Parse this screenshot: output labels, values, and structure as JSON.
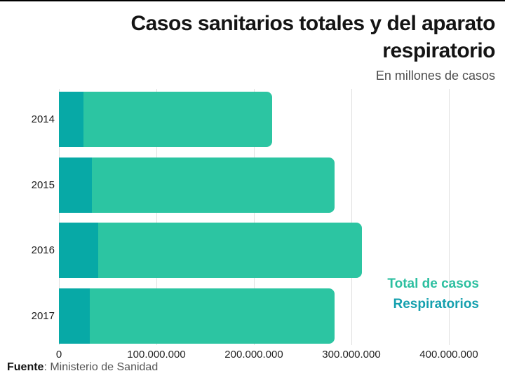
{
  "header": {
    "title": "Casos sanitarios totales y del aparato respiratorio",
    "subtitle": "En millones de casos"
  },
  "legend": {
    "total_label": "Total de casos",
    "resp_label": "Respiratorios"
  },
  "footer": {
    "source_label": "Fuente",
    "source_text": ": Ministerio de Sanidad"
  },
  "colors": {
    "total_bar": "#2CC5A2",
    "resp_bar": "#07A9A6",
    "legend_total_text": "#2CBFA0",
    "legend_resp_text": "#14A0AE",
    "gridline": "#e0e0e0"
  },
  "chart_data": {
    "type": "bar",
    "orientation": "horizontal",
    "title": "Casos sanitarios totales y del aparato respiratorio",
    "subtitle": "En millones de casos",
    "categories": [
      "2014",
      "2015",
      "2016",
      "2017"
    ],
    "series": [
      {
        "name": "Total de casos",
        "values": [
          219000000,
          283000000,
          311000000,
          283000000
        ]
      },
      {
        "name": "Respiratorios",
        "values": [
          25000000,
          34000000,
          40000000,
          32000000
        ]
      }
    ],
    "xlim": [
      0,
      400000000
    ],
    "x_ticks": [
      0,
      100000000,
      200000000,
      300000000,
      400000000
    ],
    "x_tick_labels": [
      "0",
      "100.000.000",
      "200.000.000",
      "300.000.000",
      "400.000.000"
    ],
    "grid": "vertical",
    "legend_position": "right"
  }
}
